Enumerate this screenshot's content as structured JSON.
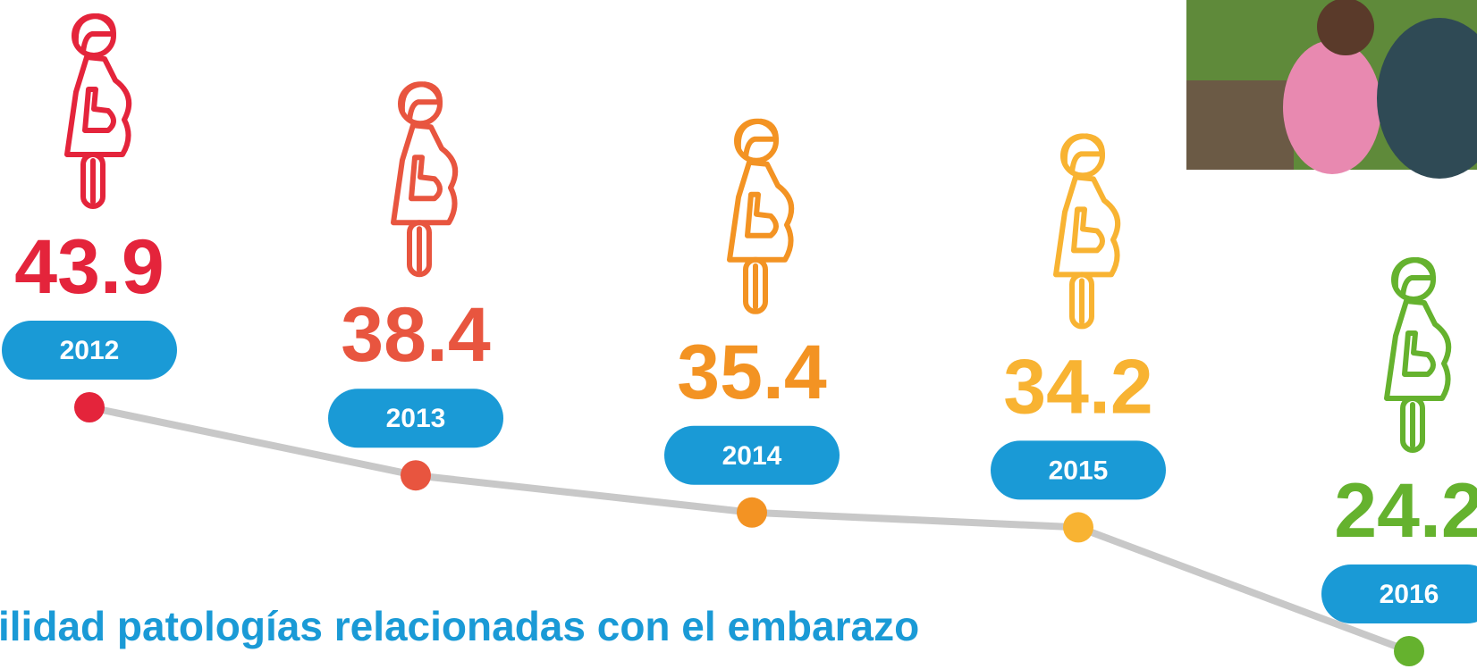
{
  "chart_data": {
    "type": "line",
    "title": "ilidad patologías relacionadas con el embarazo",
    "categories": [
      "2012",
      "2013",
      "2014",
      "2015",
      "2016"
    ],
    "values": [
      43.9,
      38.4,
      35.4,
      34.2,
      24.2
    ],
    "colors": [
      "#e4243b",
      "#e8553f",
      "#f39323",
      "#f8b332",
      "#65b22e"
    ],
    "line_color": "#c8c8c8",
    "label_color": "#1a9ad6"
  }
}
